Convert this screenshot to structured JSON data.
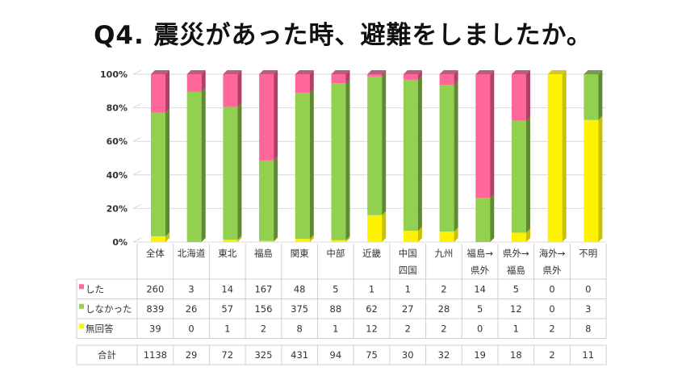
{
  "chart_data": {
    "type": "bar",
    "stacked": "percent",
    "title": "Q4. 震災があった時、避難をしましたか。",
    "categories": [
      [
        "全体"
      ],
      [
        "北海道"
      ],
      [
        "東北"
      ],
      [
        "福島"
      ],
      [
        "関東"
      ],
      [
        "中部"
      ],
      [
        "近畿"
      ],
      [
        "中国",
        "四国"
      ],
      [
        "九州"
      ],
      [
        "福島→",
        "県外"
      ],
      [
        "県外→",
        "福島"
      ],
      [
        "海外→",
        "県外"
      ],
      [
        "不明"
      ]
    ],
    "yticks": [
      "0%",
      "20%",
      "40%",
      "60%",
      "80%",
      "100%"
    ],
    "ylim": [
      0,
      100
    ],
    "grid": true,
    "series": [
      {
        "name": "無回答",
        "color": "#FFF200",
        "side": "#C9C000",
        "values": [
          39,
          0,
          1,
          2,
          8,
          1,
          12,
          2,
          2,
          0,
          1,
          2,
          8
        ]
      },
      {
        "name": "しなかった",
        "color": "#92D050",
        "side": "#5E8A33",
        "values": [
          839,
          26,
          57,
          156,
          375,
          88,
          62,
          27,
          28,
          5,
          12,
          0,
          3
        ]
      },
      {
        "name": "した",
        "color": "#FF6699",
        "side": "#B04068",
        "values": [
          260,
          3,
          14,
          167,
          48,
          5,
          1,
          1,
          2,
          14,
          5,
          0,
          0
        ]
      }
    ],
    "table_order": [
      2,
      1,
      0
    ],
    "total_label": "合計",
    "totals": [
      1138,
      29,
      72,
      325,
      431,
      94,
      75,
      30,
      32,
      19,
      18,
      2,
      11
    ]
  }
}
